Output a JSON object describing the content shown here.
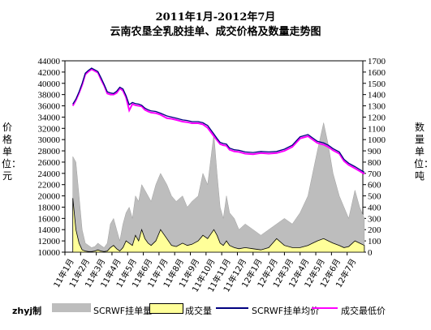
{
  "chart_data": {
    "type": "line",
    "title": "2011年1月-2012年7月",
    "subtitle": "云南农垦全乳胶挂单、成交价格及数量走势图",
    "ylabel_left": "价格单位：元",
    "ylabel_right": "数量单位：吨",
    "ylim_left": [
      10000,
      44000
    ],
    "ylim_right": [
      0,
      1700
    ],
    "y_ticks_left": [
      "10000",
      "12000",
      "14000",
      "16000",
      "18000",
      "20000",
      "22000",
      "24000",
      "26000",
      "28000",
      "30000",
      "32000",
      "34000",
      "36000",
      "38000",
      "40000",
      "42000",
      "44000"
    ],
    "y_ticks_right": [
      "0",
      "100",
      "200",
      "300",
      "400",
      "500",
      "600",
      "700",
      "800",
      "900",
      "1000",
      "1100",
      "1200",
      "1300",
      "1400",
      "1500",
      "1600",
      "1700"
    ],
    "x_ticks": [
      "11年1月",
      "11年2月",
      "11年3月",
      "11年4月",
      "11年5月",
      "11年6月",
      "11年7月",
      "11年8月",
      "11年9月",
      "11年10月",
      "11年11月",
      "11年12月",
      "12年1月",
      "12年2月",
      "12年3月",
      "12年4月",
      "12年5月",
      "12年6月",
      "12年7月"
    ],
    "author": "zhyj制",
    "colors": {
      "order_volume": "#bdbdbd",
      "deal_volume": "#ffff99",
      "avg_price": "#000080",
      "low_price": "#ff00ff"
    },
    "series": [
      {
        "name": "SCRWF挂单均价",
        "axis": "left",
        "x": [
          0,
          0.2,
          0.4,
          0.6,
          0.8,
          1.0,
          1.2,
          1.4,
          1.6,
          1.8,
          2.0,
          2.2,
          2.4,
          2.6,
          2.8,
          3.0,
          3.2,
          3.4,
          3.6,
          3.8,
          4.0,
          4.2,
          4.4,
          4.6,
          4.8,
          5.0,
          5.3,
          5.6,
          6.0,
          6.3,
          6.6,
          7.0,
          7.3,
          7.6,
          8.0,
          8.3,
          8.6,
          9.0,
          9.2,
          9.4,
          9.6,
          9.8,
          10.0,
          10.3,
          10.6,
          11.0,
          11.5,
          12.0,
          12.5,
          13.0,
          13.5,
          14.0,
          14.5,
          15.0,
          15.3,
          15.6,
          16.0,
          16.3,
          16.6,
          17.0,
          17.3,
          17.6,
          18.0,
          18.3,
          18.6
        ],
        "values": [
          36300,
          37200,
          38500,
          40000,
          41800,
          42300,
          42700,
          42400,
          42100,
          41000,
          39800,
          38500,
          38300,
          38200,
          38600,
          39300,
          39000,
          37800,
          36200,
          36600,
          36400,
          36300,
          36100,
          35600,
          35300,
          35100,
          35000,
          34700,
          34200,
          34000,
          33800,
          33500,
          33400,
          33200,
          33200,
          33000,
          32500,
          31000,
          30200,
          29500,
          29300,
          29200,
          28500,
          28200,
          28100,
          27800,
          27700,
          27900,
          27800,
          27900,
          28300,
          29000,
          30500,
          30900,
          30300,
          29700,
          29400,
          29000,
          28400,
          27800,
          26500,
          25800,
          25200,
          24700,
          24200
        ]
      },
      {
        "name": "成交最低价",
        "axis": "left",
        "x": [
          0,
          0.2,
          0.4,
          0.6,
          0.8,
          1.0,
          1.2,
          1.4,
          1.6,
          1.8,
          2.0,
          2.2,
          2.4,
          2.6,
          2.8,
          3.0,
          3.2,
          3.4,
          3.6,
          3.8,
          4.0,
          4.2,
          4.4,
          4.6,
          4.8,
          5.0,
          5.3,
          5.6,
          6.0,
          6.3,
          6.6,
          7.0,
          7.3,
          7.6,
          8.0,
          8.3,
          8.6,
          9.0,
          9.2,
          9.4,
          9.6,
          9.8,
          10.0,
          10.3,
          10.6,
          11.0,
          11.5,
          12.0,
          12.5,
          13.0,
          13.5,
          14.0,
          14.5,
          15.0,
          15.3,
          15.6,
          16.0,
          16.3,
          16.6,
          17.0,
          17.3,
          17.6,
          18.0,
          18.3,
          18.6
        ],
        "values": [
          36000,
          37000,
          38300,
          39700,
          41600,
          42100,
          42500,
          42200,
          41900,
          40700,
          39600,
          38200,
          38000,
          38000,
          38300,
          39100,
          38700,
          37500,
          35200,
          36300,
          36100,
          36000,
          35900,
          35300,
          35000,
          34800,
          34700,
          34400,
          33800,
          33700,
          33500,
          33200,
          33100,
          32900,
          32900,
          32700,
          32100,
          30600,
          29900,
          29200,
          29000,
          28900,
          28200,
          27900,
          27800,
          27500,
          27400,
          27600,
          27500,
          27600,
          28000,
          28700,
          30200,
          30600,
          30000,
          29400,
          29100,
          28700,
          28100,
          27500,
          26200,
          25500,
          24900,
          24400,
          23900
        ]
      },
      {
        "name": "SCRWF挂单量",
        "axis": "right",
        "x": [
          0,
          0.2,
          0.4,
          0.6,
          0.8,
          1.0,
          1.2,
          1.4,
          1.6,
          1.8,
          2.0,
          2.2,
          2.4,
          2.6,
          2.8,
          3.0,
          3.2,
          3.4,
          3.6,
          3.8,
          4.0,
          4.2,
          4.4,
          4.6,
          4.8,
          5.0,
          5.3,
          5.6,
          6.0,
          6.3,
          6.6,
          7.0,
          7.3,
          7.6,
          8.0,
          8.3,
          8.6,
          9.0,
          9.2,
          9.4,
          9.6,
          9.8,
          10.0,
          10.3,
          10.6,
          11.0,
          11.5,
          12.0,
          12.5,
          13.0,
          13.5,
          14.0,
          14.5,
          15.0,
          15.3,
          15.6,
          16.0,
          16.3,
          16.6,
          17.0,
          17.3,
          17.6,
          18.0,
          18.3,
          18.6
        ],
        "values": [
          850,
          800,
          500,
          200,
          80,
          60,
          40,
          50,
          80,
          60,
          40,
          80,
          250,
          300,
          200,
          100,
          250,
          350,
          400,
          300,
          500,
          450,
          600,
          550,
          500,
          450,
          600,
          700,
          600,
          500,
          450,
          500,
          400,
          450,
          500,
          700,
          600,
          1050,
          700,
          400,
          300,
          500,
          350,
          300,
          200,
          250,
          200,
          150,
          200,
          250,
          300,
          250,
          350,
          500,
          700,
          900,
          1150,
          950,
          700,
          500,
          400,
          300,
          550,
          400,
          300
        ]
      },
      {
        "name": "成交量",
        "axis": "right",
        "x": [
          0,
          0.2,
          0.4,
          0.6,
          0.8,
          1.0,
          1.2,
          1.4,
          1.6,
          1.8,
          2.0,
          2.2,
          2.4,
          2.6,
          2.8,
          3.0,
          3.2,
          3.4,
          3.6,
          3.8,
          4.0,
          4.2,
          4.4,
          4.6,
          4.8,
          5.0,
          5.3,
          5.6,
          6.0,
          6.3,
          6.6,
          7.0,
          7.3,
          7.6,
          8.0,
          8.3,
          8.6,
          9.0,
          9.2,
          9.4,
          9.6,
          9.8,
          10.0,
          10.3,
          10.6,
          11.0,
          11.5,
          12.0,
          12.5,
          13.0,
          13.5,
          14.0,
          14.5,
          15.0,
          15.3,
          15.6,
          16.0,
          16.3,
          16.6,
          17.0,
          17.3,
          17.6,
          18.0,
          18.3,
          18.6
        ],
        "values": [
          480,
          200,
          80,
          20,
          10,
          5,
          5,
          10,
          20,
          10,
          5,
          10,
          40,
          60,
          30,
          10,
          40,
          100,
          80,
          60,
          150,
          100,
          200,
          120,
          80,
          60,
          100,
          200,
          120,
          60,
          50,
          80,
          60,
          70,
          100,
          150,
          120,
          200,
          150,
          80,
          60,
          100,
          60,
          40,
          30,
          40,
          30,
          20,
          40,
          120,
          60,
          40,
          40,
          60,
          80,
          100,
          120,
          100,
          80,
          60,
          40,
          50,
          100,
          80,
          60
        ]
      }
    ]
  },
  "legend": {
    "author": "zhyj制",
    "items": [
      {
        "label": "SCRWF挂单量"
      },
      {
        "label": "成交量"
      },
      {
        "label": "SCRWF挂单均价"
      },
      {
        "label": "成交最低价"
      }
    ]
  }
}
